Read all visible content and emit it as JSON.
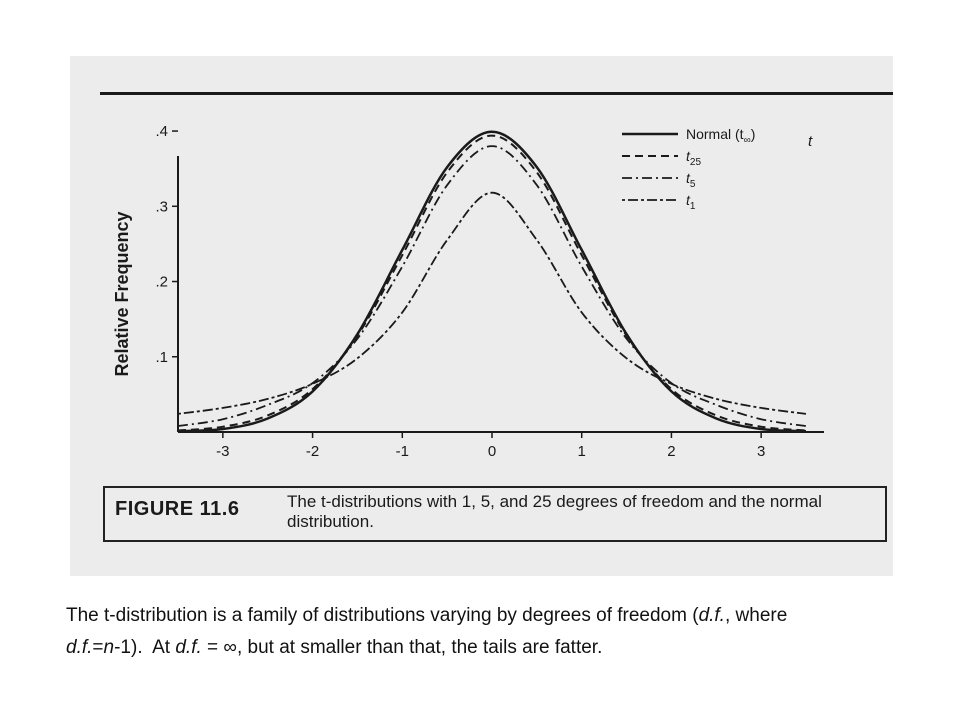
{
  "chart_data": {
    "type": "line",
    "ylabel": "Relative Frequency",
    "xlabel": "t",
    "xlim": [
      -3.5,
      3.5
    ],
    "ylim": [
      0,
      0.42
    ],
    "x_ticks": [
      -3,
      -2,
      -1,
      0,
      1,
      2,
      3
    ],
    "x_tick_labels": [
      "-3",
      "-2",
      "-1",
      "0",
      "1",
      "2",
      "3"
    ],
    "y_ticks": [
      0.1,
      0.2,
      0.3,
      0.4
    ],
    "y_tick_labels": [
      ".1",
      ".2",
      ".3",
      ".4"
    ],
    "grid": false,
    "legend_position": "top-right",
    "series": [
      {
        "name": "Normal (t∞)",
        "name_main": "Normal (t",
        "name_sub": "∞",
        "name_tail": ")",
        "df": null,
        "dash": "solid",
        "x": [
          -3.5,
          -3,
          -2.5,
          -2,
          -1.5,
          -1,
          -0.5,
          0,
          0.5,
          1,
          1.5,
          2,
          2.5,
          3,
          3.5
        ],
        "y": [
          0.001,
          0.004,
          0.018,
          0.054,
          0.13,
          0.242,
          0.352,
          0.399,
          0.352,
          0.242,
          0.13,
          0.054,
          0.018,
          0.004,
          0.001
        ]
      },
      {
        "name": "t25",
        "name_main": "t",
        "name_sub": "25",
        "name_tail": "",
        "df": 25,
        "dash": "dashed",
        "x": [
          -3.5,
          -3,
          -2.5,
          -2,
          -1.5,
          -1,
          -0.5,
          0,
          0.5,
          1,
          1.5,
          2,
          2.5,
          3,
          3.5
        ],
        "y": [
          0.002,
          0.007,
          0.022,
          0.057,
          0.128,
          0.235,
          0.345,
          0.394,
          0.345,
          0.235,
          0.128,
          0.057,
          0.022,
          0.007,
          0.002
        ]
      },
      {
        "name": "t5",
        "name_main": "t",
        "name_sub": "5",
        "name_tail": "",
        "df": 5,
        "dash": "dashdot",
        "x": [
          -3.5,
          -3,
          -2.5,
          -2,
          -1.5,
          -1,
          -0.5,
          0,
          0.5,
          1,
          1.5,
          2,
          2.5,
          3,
          3.5
        ],
        "y": [
          0.008,
          0.017,
          0.036,
          0.065,
          0.124,
          0.22,
          0.328,
          0.38,
          0.328,
          0.22,
          0.124,
          0.065,
          0.036,
          0.017,
          0.008
        ]
      },
      {
        "name": "t1",
        "name_main": "t",
        "name_sub": "1",
        "name_tail": "",
        "df": 1,
        "dash": "dotdash",
        "x": [
          -3.5,
          -3,
          -2.5,
          -2,
          -1.5,
          -1,
          -0.5,
          0,
          0.5,
          1,
          1.5,
          2,
          2.5,
          3,
          3.5
        ],
        "y": [
          0.024,
          0.032,
          0.044,
          0.064,
          0.098,
          0.159,
          0.255,
          0.318,
          0.255,
          0.159,
          0.098,
          0.064,
          0.044,
          0.032,
          0.024
        ]
      }
    ]
  },
  "figure": {
    "label": "FIGURE 11.6",
    "text": "The t-distributions with 1, 5, and 25 degrees of freedom and the normal distribution."
  },
  "caption": {
    "p1": "The t-distribution is a family of distributions varying by degrees of freedom (",
    "df1": "d.f.",
    "p2": ", where ",
    "df2": "d.f.",
    "p3": "=",
    "n": "n",
    "p4": "-1).  At ",
    "df3": "d.f.",
    "p5": " = ∞, but at smaller than that, the tails are fatter."
  },
  "colors": {
    "ink": "#1a1a1a",
    "page": "#ececec",
    "background": "#ffffff"
  }
}
